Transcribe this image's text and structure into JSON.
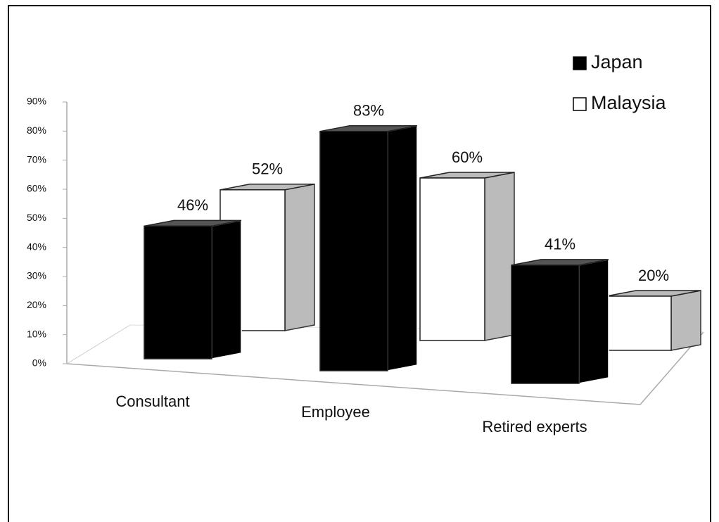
{
  "chart_data": {
    "type": "bar3d",
    "categories": [
      "Consultant",
      "Employee",
      "Retired experts"
    ],
    "series": [
      {
        "name": "Japan",
        "color": "#000000",
        "values": [
          46,
          83,
          41
        ],
        "value_labels": [
          "46%",
          "83%",
          "41%"
        ]
      },
      {
        "name": "Malaysia",
        "color": "#ffffff",
        "values": [
          52,
          60,
          20
        ],
        "value_labels": [
          "52%",
          "60%",
          "20%"
        ]
      }
    ],
    "ylim": [
      0,
      90
    ],
    "yticks": [
      {
        "value": 0,
        "label": "0%"
      },
      {
        "value": 10,
        "label": "10%"
      },
      {
        "value": 20,
        "label": "20%"
      },
      {
        "value": 30,
        "label": "30%"
      },
      {
        "value": 40,
        "label": "40%"
      },
      {
        "value": 50,
        "label": "50%"
      },
      {
        "value": 60,
        "label": "60%"
      },
      {
        "value": 70,
        "label": "70%"
      },
      {
        "value": 80,
        "label": "80%"
      },
      {
        "value": 90,
        "label": "90%"
      }
    ],
    "legend": "top-right"
  }
}
